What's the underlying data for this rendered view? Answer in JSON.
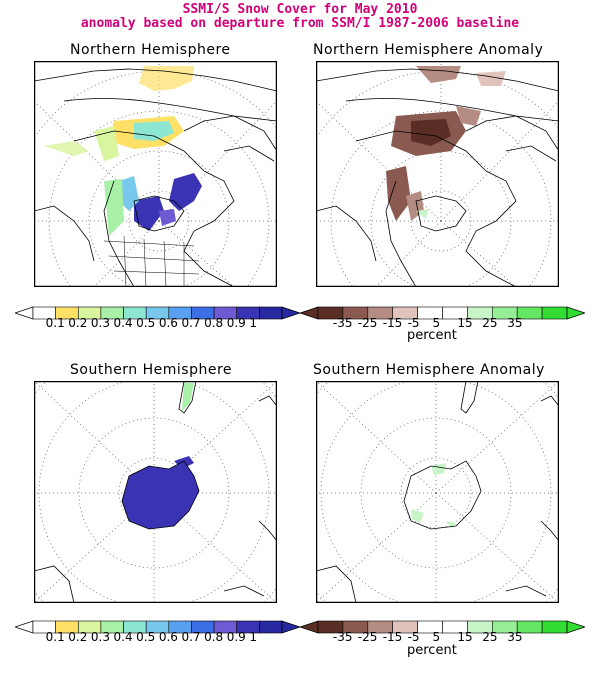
{
  "header": {
    "title_line1": "SSMI/S Snow Cover for May 2010",
    "title_line2": "anomaly based on departure from SSM/I 1987-2006 baseline"
  },
  "panels": {
    "nh": {
      "title": "Northern Hemisphere"
    },
    "nh_anom": {
      "title": "Northern Hemisphere Anomaly"
    },
    "sh": {
      "title": "Southern Hemisphere"
    },
    "sh_anom": {
      "title": "Southern Hemisphere Anomaly"
    }
  },
  "colorbars": {
    "cover": {
      "labels": [
        "0.1",
        "0.2",
        "0.3",
        "0.4",
        "0.5",
        "0.6",
        "0.7",
        "0.8",
        "0.9",
        "1"
      ],
      "colors": [
        "#ffffff",
        "#ffe066",
        "#d9f59e",
        "#a8f0a8",
        "#8ce6d2",
        "#78c8ee",
        "#5aa0f0",
        "#3c6ee6",
        "#6e5ad2",
        "#3a34b4",
        "#2828a0"
      ]
    },
    "anomaly": {
      "labels": [
        "-35",
        "-25",
        "-15",
        "-5",
        "5",
        "15",
        "25",
        "35"
      ],
      "colors": [
        "#5a2e24",
        "#8a5a50",
        "#b48c82",
        "#e0c4bc",
        "#ffffff",
        "#ffffff",
        "#c8f5c8",
        "#96ee96",
        "#64e664",
        "#32dc32"
      ],
      "unit": "percent"
    }
  },
  "colors": {
    "title": "#d40078",
    "snow_high": "#3a34b4",
    "snow_loss": "#7a4a40",
    "snow_gain": "#b4f0b4"
  }
}
